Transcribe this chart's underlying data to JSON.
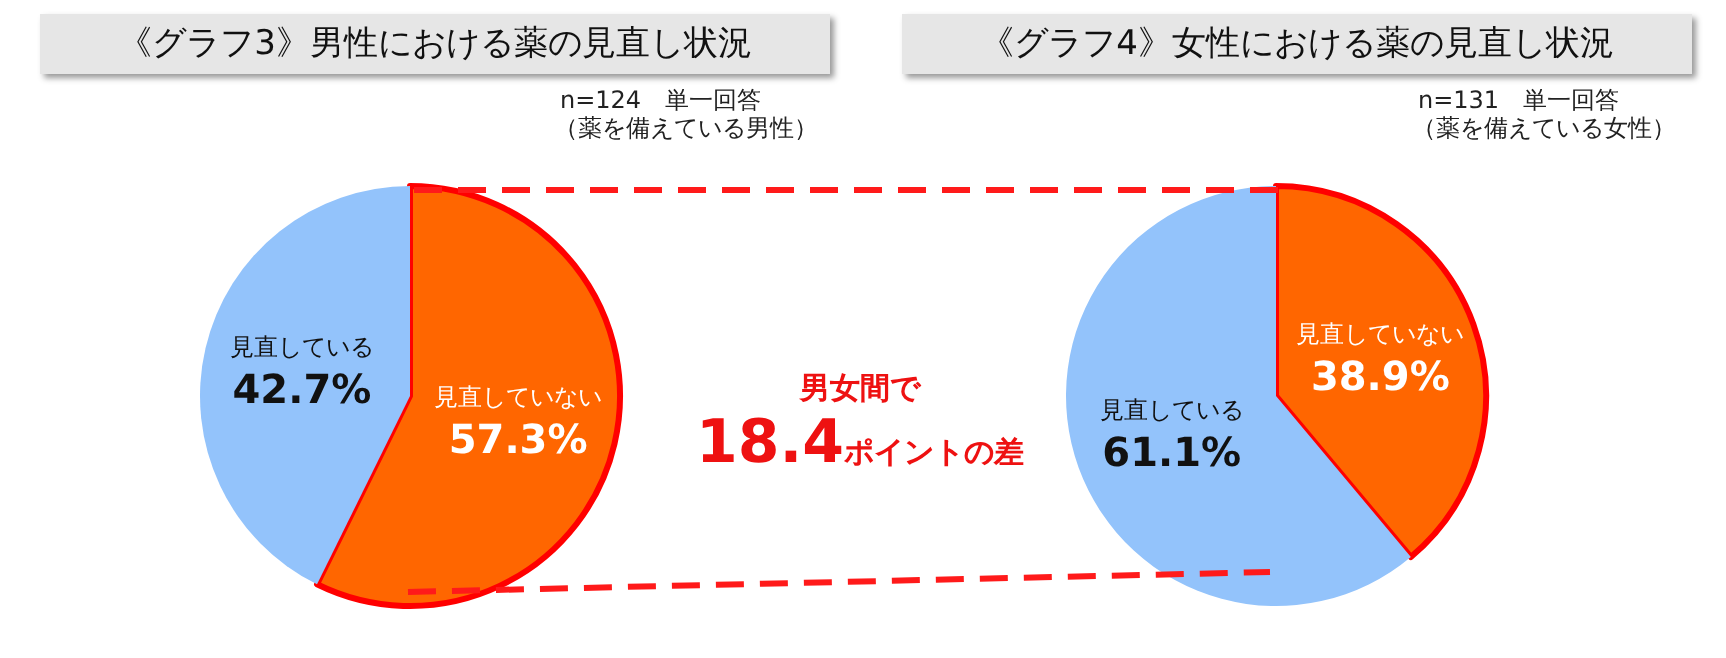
{
  "chart_data": [
    {
      "type": "pie",
      "title": "《グラフ3》男性における薬の見直し状況",
      "subtitle": "n=124　単一回答",
      "categories": [
        "見直していない",
        "見直している"
      ],
      "values": [
        57.3,
        42.7
      ],
      "value_labels": [
        "57.3%",
        "42.7%"
      ],
      "colors": [
        "#ff6600",
        "#93c3fb"
      ],
      "legend": false,
      "annotations": [
        "（薬を備えている男性）",
        "男女間で\n18.4ポイントの差"
      ]
    },
    {
      "type": "pie",
      "title": "《グラフ4》女性における薬の見直し状況",
      "subtitle": "n=131　単一回答",
      "categories": [
        "見直していない",
        "見直している"
      ],
      "values": [
        38.9,
        61.1
      ],
      "value_labels": [
        "38.9%",
        "61.1%"
      ],
      "colors": [
        "#ff6600",
        "#93c3fb"
      ],
      "legend": false,
      "annotations": [
        "（薬を備えている女性）"
      ]
    }
  ]
}
